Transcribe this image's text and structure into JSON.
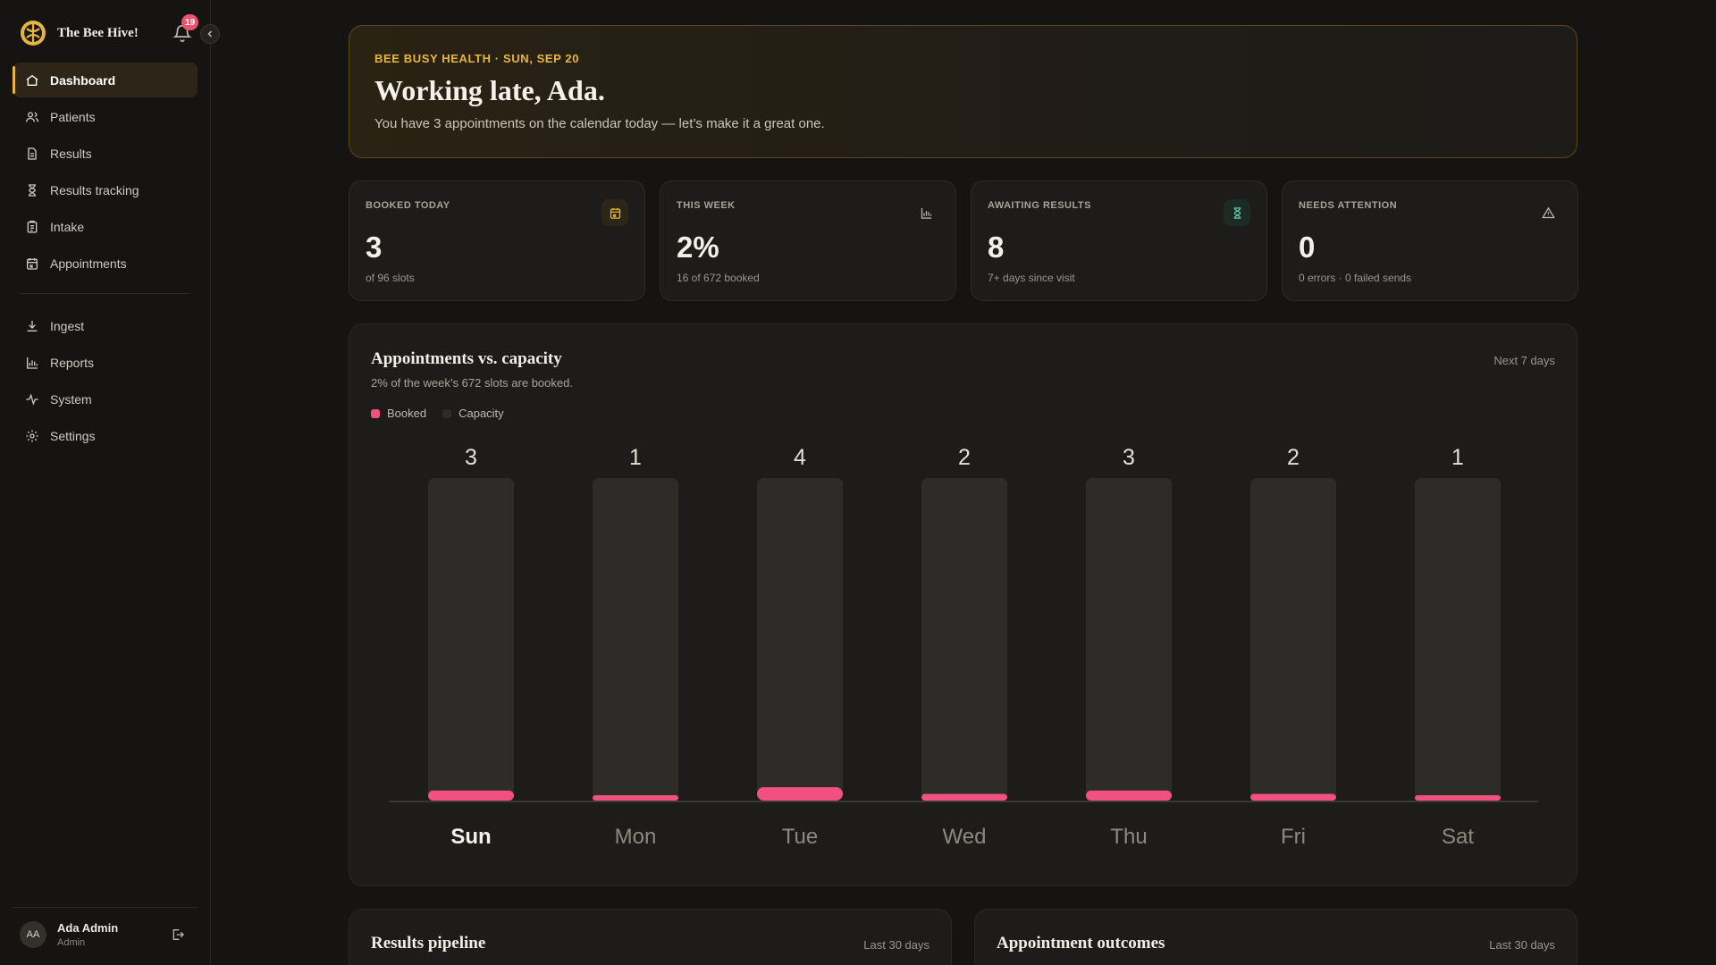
{
  "sidebar": {
    "brand_name": "The Bee Hive!",
    "notification_count": "19",
    "nav": [
      {
        "label": "Dashboard",
        "icon": "home-icon",
        "active": true
      },
      {
        "label": "Patients",
        "icon": "users-icon"
      },
      {
        "label": "Results",
        "icon": "file-icon"
      },
      {
        "label": "Results tracking",
        "icon": "hourglass-icon"
      },
      {
        "label": "Intake",
        "icon": "clipboard-icon"
      },
      {
        "label": "Appointments",
        "icon": "calendar-icon"
      }
    ],
    "nav_secondary": [
      {
        "label": "Ingest",
        "icon": "download-icon"
      },
      {
        "label": "Reports",
        "icon": "bar-chart-icon"
      },
      {
        "label": "System",
        "icon": "activity-icon"
      },
      {
        "label": "Settings",
        "icon": "gear-icon"
      }
    ],
    "user": {
      "initials": "AA",
      "name": "Ada Admin",
      "role": "Admin"
    }
  },
  "hero": {
    "kicker": "BEE BUSY HEALTH · SUN, SEP 20",
    "title": "Working late, Ada.",
    "subtitle": "You have 3 appointments on the calendar today — let’s make it a great one."
  },
  "stats": [
    {
      "label": "BOOKED TODAY",
      "value": "3",
      "sub": "of 96 slots",
      "icon": "calendar-icon",
      "accent": "#e8b63c"
    },
    {
      "label": "THIS WEEK",
      "value": "2%",
      "sub": "16 of 672 booked",
      "icon": "bar-chart-icon",
      "accent": "#bdb8b0"
    },
    {
      "label": "AWAITING RESULTS",
      "value": "8",
      "sub": "7+ days since visit",
      "icon": "hourglass-icon",
      "accent": "#5fd3a8"
    },
    {
      "label": "NEEDS ATTENTION",
      "value": "0",
      "sub": "0 errors · 0 failed sends",
      "icon": "alert-triangle-icon",
      "accent": "#bdb8b0"
    }
  ],
  "chart_card": {
    "title": "Appointments vs. capacity",
    "subtitle": "2% of the week’s 672 slots are booked.",
    "range": "Next 7 days"
  },
  "chart_data": {
    "type": "bar",
    "categories": [
      "Sun",
      "Mon",
      "Tue",
      "Wed",
      "Thu",
      "Fri",
      "Sat"
    ],
    "series": [
      {
        "name": "Booked",
        "values": [
          3,
          1,
          4,
          2,
          3,
          2,
          1
        ],
        "color": "#f0517e"
      },
      {
        "name": "Capacity",
        "values": [
          96,
          96,
          96,
          96,
          96,
          96,
          96
        ],
        "color": "#2e2c29"
      }
    ],
    "highlight_category": "Sun",
    "legend": "top-left",
    "ylim": [
      0,
      96
    ]
  },
  "bottom_cards": [
    {
      "title": "Results pipeline",
      "range": "Last 30 days"
    },
    {
      "title": "Appointment outcomes",
      "range": "Last 30 days"
    }
  ]
}
